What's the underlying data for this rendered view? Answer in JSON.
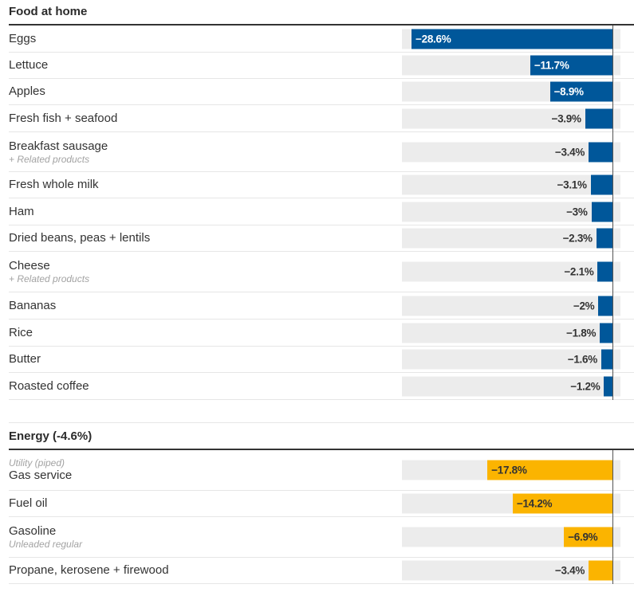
{
  "chart_data": [
    {
      "type": "bar",
      "orientation": "horizontal",
      "title": "Food at home",
      "color": "#00579a",
      "label_inside_color": "#ffffff",
      "label_outside_color": "#333333",
      "xlim": [
        -29.5,
        1.1
      ],
      "categories": [
        {
          "label": "Eggs",
          "sublabel": "",
          "sublabel_position": "",
          "value": -28.6,
          "value_label": "−28.6%"
        },
        {
          "label": "Lettuce",
          "sublabel": "",
          "sublabel_position": "",
          "value": -11.7,
          "value_label": "−11.7%"
        },
        {
          "label": "Apples",
          "sublabel": "",
          "sublabel_position": "",
          "value": -8.9,
          "value_label": "−8.9%"
        },
        {
          "label": "Fresh fish + seafood",
          "sublabel": "",
          "sublabel_position": "",
          "value": -3.9,
          "value_label": "−3.9%"
        },
        {
          "label": "Breakfast sausage",
          "sublabel": "+ Related products",
          "sublabel_position": "below",
          "value": -3.4,
          "value_label": "−3.4%"
        },
        {
          "label": "Fresh whole milk",
          "sublabel": "",
          "sublabel_position": "",
          "value": -3.1,
          "value_label": "−3.1%"
        },
        {
          "label": "Ham",
          "sublabel": "",
          "sublabel_position": "",
          "value": -3.0,
          "value_label": "−3%"
        },
        {
          "label": "Dried beans, peas + lentils",
          "sublabel": "",
          "sublabel_position": "",
          "value": -2.3,
          "value_label": "−2.3%"
        },
        {
          "label": "Cheese",
          "sublabel": "+ Related products",
          "sublabel_position": "below",
          "value": -2.1,
          "value_label": "−2.1%"
        },
        {
          "label": "Bananas",
          "sublabel": "",
          "sublabel_position": "",
          "value": -2.0,
          "value_label": "−2%"
        },
        {
          "label": "Rice",
          "sublabel": "",
          "sublabel_position": "",
          "value": -1.8,
          "value_label": "−1.8%"
        },
        {
          "label": "Butter",
          "sublabel": "",
          "sublabel_position": "",
          "value": -1.6,
          "value_label": "−1.6%"
        },
        {
          "label": "Roasted coffee",
          "sublabel": "",
          "sublabel_position": "",
          "value": -1.2,
          "value_label": "−1.2%"
        }
      ]
    },
    {
      "type": "bar",
      "orientation": "horizontal",
      "title": "Energy (-4.6%)",
      "color": "#fbb400",
      "label_inside_color": "#333333",
      "label_outside_color": "#333333",
      "xlim": [
        -29.5,
        1.1
      ],
      "categories": [
        {
          "label": "Gas service",
          "sublabel": "Utility (piped)",
          "sublabel_position": "above",
          "value": -17.8,
          "value_label": "−17.8%"
        },
        {
          "label": "Fuel oil",
          "sublabel": "",
          "sublabel_position": "",
          "value": -14.2,
          "value_label": "−14.2%"
        },
        {
          "label": "Gasoline",
          "sublabel": "Unleaded regular",
          "sublabel_position": "below",
          "value": -6.9,
          "value_label": "−6.9%"
        },
        {
          "label": "Propane, kerosene + firewood",
          "sublabel": "",
          "sublabel_position": "",
          "value": -3.4,
          "value_label": "−3.4%"
        }
      ]
    }
  ]
}
